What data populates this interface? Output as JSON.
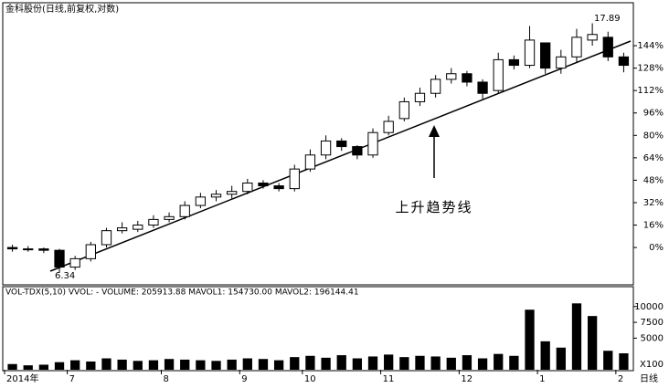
{
  "chart_data": [
    {
      "type": "candlestick",
      "title": "金科股份(日线,前复权,对数)",
      "categories": [
        "2014年",
        null,
        null,
        null,
        "7",
        null,
        null,
        null,
        null,
        null,
        "8",
        null,
        null,
        null,
        null,
        "9",
        null,
        null,
        null,
        "10",
        null,
        null,
        null,
        null,
        "11",
        null,
        null,
        null,
        null,
        "12",
        null,
        null,
        null,
        null,
        "1",
        null,
        null,
        null,
        null,
        "2"
      ],
      "open": [
        0,
        -1,
        -1,
        -2,
        -14,
        -8,
        2,
        12,
        13,
        16,
        20,
        22,
        30,
        36,
        38,
        40,
        46,
        44,
        42,
        56,
        66,
        76,
        72,
        66,
        82,
        92,
        104,
        110,
        120,
        124,
        118,
        112,
        134,
        130,
        146,
        128,
        136,
        148,
        150,
        136
      ],
      "close": [
        -1,
        -1,
        -2,
        -14,
        -8,
        2,
        12,
        14,
        16,
        20,
        22,
        30,
        36,
        38,
        40,
        46,
        44,
        42,
        56,
        66,
        76,
        72,
        66,
        82,
        90,
        104,
        110,
        120,
        124,
        118,
        110,
        134,
        130,
        148,
        128,
        136,
        150,
        152,
        136,
        130
      ],
      "high": [
        2,
        1,
        0,
        -1,
        -6,
        4,
        14,
        18,
        19,
        23,
        25,
        33,
        39,
        41,
        44,
        49,
        48,
        46,
        59,
        70,
        80,
        78,
        73,
        85,
        94,
        107,
        114,
        123,
        128,
        126,
        120,
        139,
        137,
        158,
        146,
        141,
        156,
        160,
        154,
        139
      ],
      "low": [
        -3,
        -3,
        -4,
        -18,
        -16,
        -10,
        0,
        10,
        11,
        14,
        18,
        20,
        28,
        33,
        35,
        38,
        42,
        40,
        40,
        54,
        63,
        69,
        63,
        64,
        80,
        90,
        101,
        107,
        117,
        115,
        106,
        110,
        127,
        128,
        124,
        124,
        132,
        144,
        133,
        125
      ],
      "up_color": "#ffffff",
      "down_color": "#000000",
      "ylim": [
        -26,
        174
      ],
      "yticks": [
        {
          "value": 0,
          "label": "0%"
        },
        {
          "value": 16,
          "label": "16%"
        },
        {
          "value": 32,
          "label": "32%"
        },
        {
          "value": 48,
          "label": "48%"
        },
        {
          "value": 64,
          "label": "64%"
        },
        {
          "value": 80,
          "label": "80%"
        },
        {
          "value": 96,
          "label": "96%"
        },
        {
          "value": 112,
          "label": "112%"
        },
        {
          "value": 128,
          "label": "128%"
        },
        {
          "value": 144,
          "label": "144%"
        }
      ],
      "low_label": "6.34",
      "high_label": "17.89",
      "trend_label": "上升趋势线"
    },
    {
      "type": "bar",
      "title": "VOL-TDX(5,10) VVOL: -  VOLUME: 205913.88  MAVOL1: 154730.00  MAVOL2: 196144.41",
      "values": [
        900,
        700,
        800,
        1200,
        1500,
        1300,
        1800,
        1600,
        1400,
        1500,
        1700,
        1600,
        1500,
        1400,
        1600,
        1800,
        1700,
        1500,
        2000,
        2200,
        1900,
        2300,
        1800,
        2100,
        2400,
        2000,
        2200,
        2100,
        1900,
        2300,
        1800,
        2500,
        2200,
        9500,
        4500,
        3500,
        10500,
        8500,
        3000,
        2600
      ],
      "color": "#000000",
      "unit": "X100",
      "period": "日线",
      "ylim": [
        0,
        13000
      ],
      "yticks": [
        5000,
        7500,
        10000
      ]
    }
  ]
}
